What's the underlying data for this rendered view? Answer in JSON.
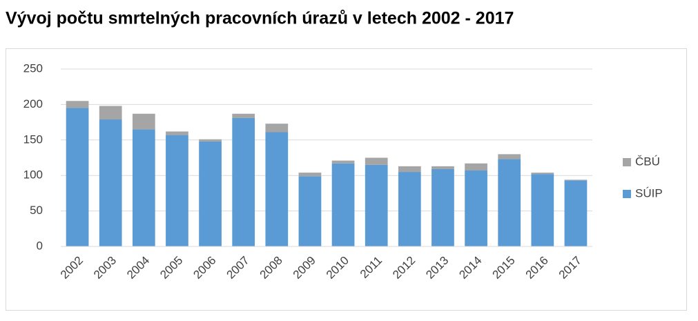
{
  "chart_data": {
    "type": "stacked_bar",
    "title": "Vývoj počtu smrtelných pracovních úrazů v letech 2002 - 2017",
    "categories": [
      "2002",
      "2003",
      "2004",
      "2005",
      "2006",
      "2007",
      "2008",
      "2009",
      "2010",
      "2011",
      "2012",
      "2013",
      "2014",
      "2015",
      "2016",
      "2017"
    ],
    "series": [
      {
        "name": "SÚIP",
        "color": "#5b9bd5",
        "values": [
          195,
          179,
          165,
          157,
          148,
          181,
          161,
          99,
          117,
          115,
          105,
          109,
          107,
          123,
          102,
          93
        ]
      },
      {
        "name": "ČBÚ",
        "color": "#a5a5a5",
        "values": [
          10,
          19,
          22,
          5,
          3,
          6,
          12,
          5,
          4,
          10,
          8,
          4,
          10,
          7,
          2,
          1
        ]
      }
    ],
    "ylim": [
      0,
      250
    ],
    "yticks": [
      0,
      50,
      100,
      150,
      200,
      250
    ],
    "grid": true,
    "legend": "right"
  }
}
